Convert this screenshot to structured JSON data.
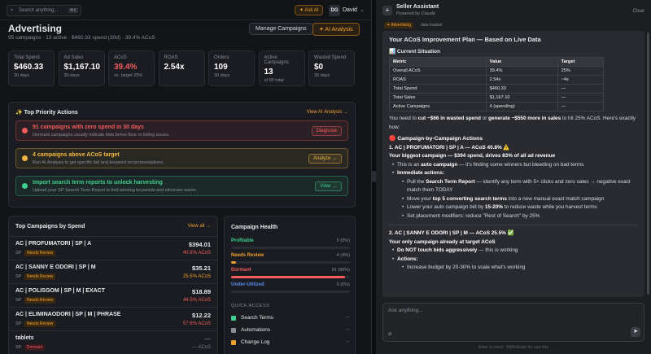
{
  "search": {
    "placeholder": "Search anything...",
    "shortcut": "⌘K"
  },
  "topbar": {
    "ask_ai": "✦ Ask AI",
    "avatar": "DG",
    "user": "David"
  },
  "header": {
    "title": "Advertising",
    "subtitle": "95 campaigns · 13 active · $460.33 spend (30d) · 39.4% ACoS",
    "buttons": [
      "Manage Campaigns",
      "✦ AI Analysis"
    ]
  },
  "stats": [
    {
      "label": "Total Spend",
      "value": "$460.33",
      "sub": "30 days",
      "color": "#ffffff"
    },
    {
      "label": "Ad Sales",
      "value": "$1,167.10",
      "sub": "30 days",
      "color": "#ffffff"
    },
    {
      "label": "ACoS",
      "value": "39.4%",
      "sub": "vs. target 25%",
      "color": "#f25c5c"
    },
    {
      "label": "ROAS",
      "value": "2.54x",
      "color": "#ffffff"
    },
    {
      "label": "Orders",
      "value": "109",
      "sub": "30 days",
      "color": "#ffffff"
    },
    {
      "label": "Active Campaigns",
      "value": "13",
      "sub": "of 95 total",
      "color": "#ffffff"
    },
    {
      "label": "Wasted Spend",
      "value": "$0",
      "sub": "30 days",
      "color": "#ffffff"
    }
  ],
  "priority": {
    "title": "✨ Top Priority Actions",
    "link": "View AI Analysis →",
    "items": [
      {
        "title": "91 campaigns with zero spend in 30 days",
        "desc": "Dormant campaigns usually indicate bids below floor or listing issues.",
        "button": "Diagnose",
        "color": "#f25c5c"
      },
      {
        "title": "4 campaigns above ACoS target",
        "desc": "Run AI Analysis to get specific bid and keyword recommendations.",
        "button": "Analyze →",
        "color": "#f5b942"
      },
      {
        "title": "Import search term reports to unlock harvesting",
        "desc": "Upload your SP Search Term Report to find winning keywords and eliminate waste.",
        "button": "View →",
        "color": "#3ecf8e"
      }
    ]
  },
  "top_campaigns": {
    "title": "Top Campaigns by Spend",
    "link": "View all →",
    "rows": [
      {
        "name": "AC | PROFUMATORI | SP | A",
        "type": "SP",
        "status": "Needs Review",
        "spend": "$394.01",
        "acos": "40.8% ACoS",
        "color": "#f25c5c"
      },
      {
        "name": "AC | SANNY E ODORI | SP | M",
        "type": "SP",
        "status": "Needs Review",
        "spend": "$35.21",
        "acos": "25.5% ACoS",
        "color": "#f0a030"
      },
      {
        "name": "AC | POLISGOM | SP | M | EXACT",
        "type": "SP",
        "status": "Needs Review",
        "spend": "$18.89",
        "acos": "44.5% ACoS",
        "color": "#f25c5c"
      },
      {
        "name": "AC | ELIMINAODORI | SP | M | PHRASE",
        "type": "SP",
        "status": "Needs Review",
        "spend": "$12.22",
        "acos": "57.6% ACoS",
        "color": "#f25c5c"
      },
      {
        "name": "tablets",
        "type": "SP",
        "status": "Dormant",
        "spend": "—",
        "acos": "— ACoS",
        "color": "#777b85"
      }
    ]
  },
  "health": {
    "title": "Campaign Health",
    "rows": [
      {
        "label": "Profitable",
        "count": "0 (0%)",
        "percent": 0,
        "color": "#3ecf8e"
      },
      {
        "label": "Needs Review",
        "count": "4 (4%)",
        "percent": 4,
        "color": "#f0a030"
      },
      {
        "label": "Dormant",
        "count": "91 (96%)",
        "percent": 96,
        "color": "#f25c5c"
      },
      {
        "label": "Under-Utilized",
        "count": "0 (0%)",
        "percent": 0,
        "color": "#5b8def"
      }
    ]
  },
  "quick_access": {
    "title": "QUICK ACCESS",
    "items": [
      "Search Terms",
      "Automations",
      "Change Log"
    ]
  },
  "chat": {
    "title": "Seller Assistant",
    "subtitle": "Powered by Claude",
    "clear": "Clear",
    "context_tag": "✦ Advertising",
    "context_note": "data loaded",
    "heading": "Your ACoS Improvement Plan — Based on Live Data",
    "section": "📊 Current Situation",
    "table": {
      "header": [
        "Metric",
        "Value",
        "Target"
      ],
      "rows": [
        [
          "Overall ACoS",
          "39.4%",
          "25%"
        ],
        [
          "ROAS",
          "2.54x",
          "~4x"
        ],
        [
          "Total Spend",
          "$460.33",
          "—"
        ],
        [
          "Total Sales",
          "$1,167.10",
          "—"
        ],
        [
          "Active Campaigns",
          "4 (spending)",
          "—"
        ]
      ]
    },
    "blocks": [
      {
        "kind": "p",
        "segments": [
          {
            "text": "You need to "
          },
          {
            "text": "cut ~$66 in wasted spend",
            "bold": true
          },
          {
            "text": " or "
          },
          {
            "text": "generate ~$550 more in sales",
            "bold": true
          },
          {
            "text": " to hit 25% ACoS. Here's exactly how:"
          }
        ]
      },
      {
        "kind": "h",
        "segments": [
          {
            "text": "🔴 Campaign-by-Campaign Actions",
            "bold": true
          }
        ]
      },
      {
        "kind": "p",
        "segments": [
          {
            "text": "1. AC | PROFUMATORI | SP | A — ACoS 40.8% ⚠️",
            "bold": true
          }
        ]
      },
      {
        "kind": "p",
        "segments": [
          {
            "text": "Your biggest campaign — $394 spend, drives 83% of all ad revenue",
            "bold": true
          }
        ]
      },
      {
        "kind": "li",
        "segments": [
          {
            "text": "This is an "
          },
          {
            "text": "auto campaign",
            "bold": true
          },
          {
            "text": " — it's finding some winners but bleeding on bad terms"
          }
        ]
      },
      {
        "kind": "li",
        "segments": [
          {
            "text": "Immediate actions:",
            "bold": true
          }
        ]
      },
      {
        "kind": "li2",
        "segments": [
          {
            "text": "Pull the "
          },
          {
            "text": "Search Term Report",
            "bold": true
          },
          {
            "text": " — identify any term with 5+ clicks and zero sales → negative exact match them TODAY"
          }
        ]
      },
      {
        "kind": "li2",
        "segments": [
          {
            "text": "Move your "
          },
          {
            "text": "top 5 converting search terms",
            "bold": true
          },
          {
            "text": " into a new manual exact match campaign"
          }
        ]
      },
      {
        "kind": "li2",
        "segments": [
          {
            "text": "Lower your auto campaign bid by "
          },
          {
            "text": "15-20%",
            "bold": true
          },
          {
            "text": " to reduce waste while you harvest terms"
          }
        ]
      },
      {
        "kind": "li2",
        "segments": [
          {
            "text": "Set placement modifiers: reduce \"Rest of Search\" by 25%"
          }
        ]
      },
      {
        "kind": "rule",
        "segments": []
      },
      {
        "kind": "p",
        "segments": [
          {
            "text": "2. AC | SANNY E ODORI | SP | M — ACoS 25.5% ✅",
            "bold": true
          }
        ]
      },
      {
        "kind": "p",
        "segments": [
          {
            "text": "Your only campaign already at target ACoS",
            "bold": true
          }
        ]
      },
      {
        "kind": "li",
        "segments": [
          {
            "text": "Do NOT touch bids aggressively",
            "bold": true
          },
          {
            "text": " — this is working"
          }
        ]
      },
      {
        "kind": "li",
        "segments": [
          {
            "text": "Actions:",
            "bold": true
          }
        ]
      },
      {
        "kind": "li2",
        "segments": [
          {
            "text": "Increase budget by 20-30% to scale what's working"
          }
        ]
      }
    ],
    "input_placeholder": "Ask anything...",
    "footer": "Enter to send · Shift+Enter for new line"
  }
}
